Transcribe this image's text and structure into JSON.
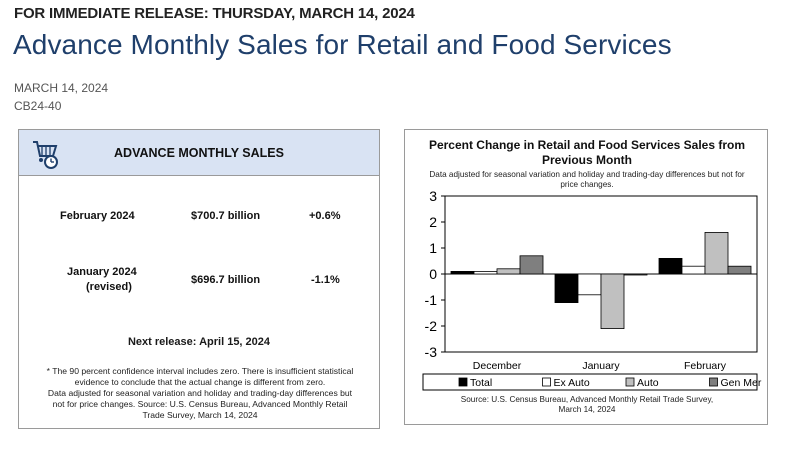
{
  "header": {
    "kicker": "FOR IMMEDIATE RELEASE: THURSDAY, MARCH 14, 2024",
    "headline": "Advance Monthly Sales for Retail and Food Services",
    "date": "MARCH 14, 2024",
    "release_number": "CB24-40"
  },
  "summary_card": {
    "title": "ADVANCE MONTHLY SALES",
    "icon": "shopping-cart-clock-icon",
    "rows": [
      {
        "period": "February 2024",
        "period_line2": "",
        "value": "$700.7 billion",
        "change": "+0.6%"
      },
      {
        "period": "January 2024",
        "period_line2": "(revised)",
        "value": "$696.7 billion",
        "change": "-1.1%"
      }
    ],
    "next_release": "Next release: April 15, 2024",
    "footnote_line1": "* The 90 percent confidence interval includes zero. There is insufficient statistical",
    "footnote_line2": "evidence to conclude that the actual change is different from zero.",
    "footnote_line3": "Data adjusted for seasonal variation and holiday and trading-day differences but",
    "footnote_line4": "not for price changes. Source: U.S. Census Bureau, Advanced Monthly Retail",
    "footnote_line5": "Trade Survey, March 14, 2024"
  },
  "chart_card": {
    "title_line1": "Percent Change in Retail and Food Services Sales from",
    "title_line2": "Previous Month",
    "subtitle_line1": "Data adjusted for seasonal variation and holiday and trading-day differences but not for",
    "subtitle_line2": "price changes.",
    "source_line1": "Source: U.S. Census Bureau, Advanced Monthly Retail Trade Survey,",
    "source_line2": "March 14, 2024"
  },
  "chart_data": {
    "type": "bar",
    "title": "Percent Change in Retail and Food Services Sales from Previous Month",
    "categories": [
      "December",
      "January",
      "February"
    ],
    "ylim": [
      -3,
      3
    ],
    "yticks": [
      3,
      2,
      1,
      0,
      -1,
      -2,
      -3
    ],
    "xlabel": "",
    "ylabel": "",
    "grid": false,
    "legend_position": "bottom",
    "series": [
      {
        "name": "Total",
        "color": "#000000",
        "values": [
          0.1,
          -1.1,
          0.6
        ]
      },
      {
        "name": "Ex Auto",
        "color": "#ffffff",
        "values": [
          0.1,
          -0.8,
          0.3
        ]
      },
      {
        "name": "Auto",
        "color": "#c0c0c0",
        "values": [
          0.2,
          -2.1,
          1.6
        ]
      },
      {
        "name": "Gen Mer",
        "color": "#7f7f7f",
        "values": [
          0.7,
          0.0,
          0.3
        ]
      }
    ]
  }
}
